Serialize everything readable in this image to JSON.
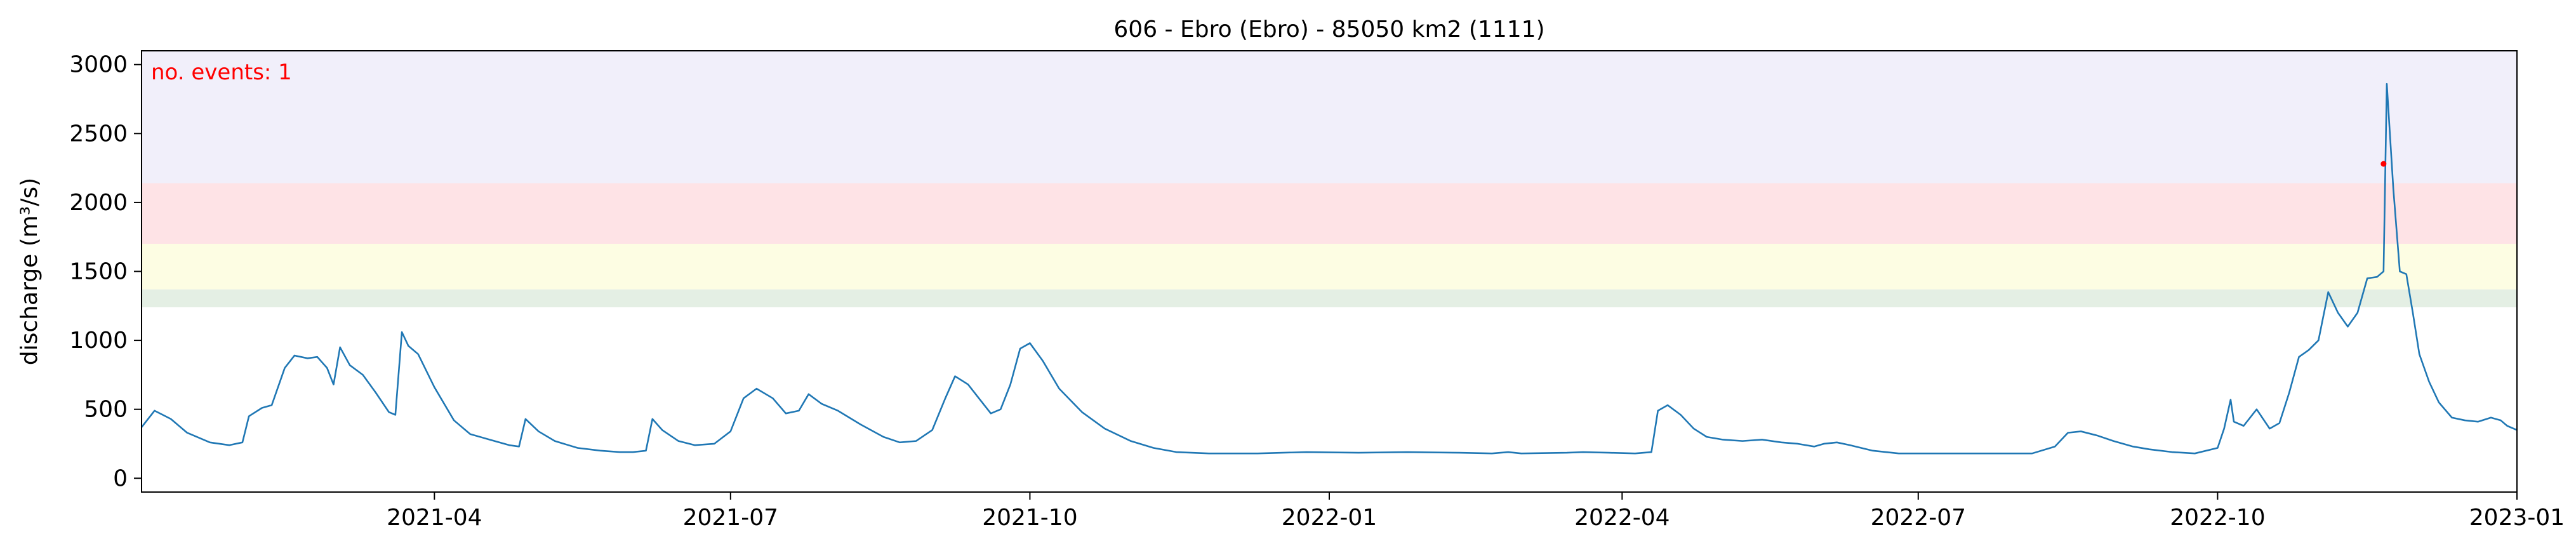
{
  "chart_data": {
    "type": "line",
    "title": "606 - Ebro (Ebro) - 85050 km2 (1111)",
    "xlabel": "",
    "ylabel": "discharge (m³/s)",
    "xlim": [
      "2021-01-01",
      "2023-01-01"
    ],
    "ylim": [
      -100,
      3100
    ],
    "grid": false,
    "x_ticks": [
      "2021-04",
      "2021-07",
      "2021-10",
      "2022-01",
      "2022-04",
      "2022-07",
      "2022-10",
      "2023-01"
    ],
    "y_ticks": [
      "0",
      "500",
      "1000",
      "1500",
      "2000",
      "2500",
      "3000"
    ],
    "y_tick_values": [
      0,
      500,
      1000,
      1500,
      2000,
      2500,
      3000
    ],
    "threshold_bands": [
      {
        "from": 1240,
        "to": 1370,
        "color": "#e4efe4"
      },
      {
        "from": 1370,
        "to": 1700,
        "color": "#fdfde3"
      },
      {
        "from": 1700,
        "to": 2140,
        "color": "#fee3e6"
      },
      {
        "from": 2140,
        "to": 3100,
        "color": "#f1effa"
      }
    ],
    "series": [
      {
        "color": "#1f77b4",
        "points": [
          [
            "2021-01-01",
            370
          ],
          [
            "2021-01-05",
            490
          ],
          [
            "2021-01-10",
            430
          ],
          [
            "2021-01-15",
            330
          ],
          [
            "2021-01-22",
            260
          ],
          [
            "2021-01-28",
            240
          ],
          [
            "2021-02-01",
            260
          ],
          [
            "2021-02-03",
            450
          ],
          [
            "2021-02-07",
            510
          ],
          [
            "2021-02-10",
            530
          ],
          [
            "2021-02-14",
            800
          ],
          [
            "2021-02-17",
            890
          ],
          [
            "2021-02-21",
            870
          ],
          [
            "2021-02-24",
            880
          ],
          [
            "2021-02-27",
            800
          ],
          [
            "2021-03-01",
            680
          ],
          [
            "2021-03-03",
            950
          ],
          [
            "2021-03-06",
            820
          ],
          [
            "2021-03-10",
            750
          ],
          [
            "2021-03-14",
            620
          ],
          [
            "2021-03-18",
            480
          ],
          [
            "2021-03-20",
            460
          ],
          [
            "2021-03-22",
            1060
          ],
          [
            "2021-03-24",
            960
          ],
          [
            "2021-03-27",
            900
          ],
          [
            "2021-04-01",
            660
          ],
          [
            "2021-04-07",
            420
          ],
          [
            "2021-04-12",
            320
          ],
          [
            "2021-04-18",
            280
          ],
          [
            "2021-04-24",
            240
          ],
          [
            "2021-04-27",
            230
          ],
          [
            "2021-04-29",
            430
          ],
          [
            "2021-05-03",
            340
          ],
          [
            "2021-05-08",
            270
          ],
          [
            "2021-05-15",
            220
          ],
          [
            "2021-05-22",
            200
          ],
          [
            "2021-05-28",
            190
          ],
          [
            "2021-06-01",
            190
          ],
          [
            "2021-06-05",
            200
          ],
          [
            "2021-06-07",
            430
          ],
          [
            "2021-06-10",
            350
          ],
          [
            "2021-06-15",
            270
          ],
          [
            "2021-06-20",
            240
          ],
          [
            "2021-06-26",
            250
          ],
          [
            "2021-07-01",
            340
          ],
          [
            "2021-07-05",
            580
          ],
          [
            "2021-07-09",
            650
          ],
          [
            "2021-07-14",
            580
          ],
          [
            "2021-07-18",
            470
          ],
          [
            "2021-07-22",
            490
          ],
          [
            "2021-07-25",
            610
          ],
          [
            "2021-07-29",
            540
          ],
          [
            "2021-08-03",
            490
          ],
          [
            "2021-08-10",
            390
          ],
          [
            "2021-08-17",
            300
          ],
          [
            "2021-08-22",
            260
          ],
          [
            "2021-08-27",
            270
          ],
          [
            "2021-09-01",
            350
          ],
          [
            "2021-09-05",
            580
          ],
          [
            "2021-09-08",
            740
          ],
          [
            "2021-09-12",
            680
          ],
          [
            "2021-09-16",
            560
          ],
          [
            "2021-09-19",
            470
          ],
          [
            "2021-09-22",
            500
          ],
          [
            "2021-09-25",
            680
          ],
          [
            "2021-09-28",
            940
          ],
          [
            "2021-10-01",
            980
          ],
          [
            "2021-10-05",
            850
          ],
          [
            "2021-10-10",
            650
          ],
          [
            "2021-10-17",
            480
          ],
          [
            "2021-10-24",
            360
          ],
          [
            "2021-11-01",
            270
          ],
          [
            "2021-11-08",
            220
          ],
          [
            "2021-11-15",
            190
          ],
          [
            "2021-11-25",
            180
          ],
          [
            "2021-12-10",
            180
          ],
          [
            "2021-12-25",
            190
          ],
          [
            "2022-01-10",
            185
          ],
          [
            "2022-01-25",
            190
          ],
          [
            "2022-02-10",
            185
          ],
          [
            "2022-02-20",
            180
          ],
          [
            "2022-02-25",
            190
          ],
          [
            "2022-03-01",
            180
          ],
          [
            "2022-03-15",
            185
          ],
          [
            "2022-03-20",
            190
          ],
          [
            "2022-03-28",
            185
          ],
          [
            "2022-04-05",
            180
          ],
          [
            "2022-04-10",
            190
          ],
          [
            "2022-04-12",
            490
          ],
          [
            "2022-04-15",
            530
          ],
          [
            "2022-04-19",
            460
          ],
          [
            "2022-04-23",
            360
          ],
          [
            "2022-04-27",
            300
          ],
          [
            "2022-05-02",
            280
          ],
          [
            "2022-05-08",
            270
          ],
          [
            "2022-05-14",
            280
          ],
          [
            "2022-05-20",
            260
          ],
          [
            "2022-05-25",
            250
          ],
          [
            "2022-05-30",
            230
          ],
          [
            "2022-06-02",
            250
          ],
          [
            "2022-06-06",
            260
          ],
          [
            "2022-06-10",
            240
          ],
          [
            "2022-06-17",
            200
          ],
          [
            "2022-06-25",
            180
          ],
          [
            "2022-07-05",
            180
          ],
          [
            "2022-07-15",
            180
          ],
          [
            "2022-07-28",
            180
          ],
          [
            "2022-08-05",
            180
          ],
          [
            "2022-08-12",
            230
          ],
          [
            "2022-08-16",
            330
          ],
          [
            "2022-08-20",
            340
          ],
          [
            "2022-08-25",
            310
          ],
          [
            "2022-08-30",
            270
          ],
          [
            "2022-09-05",
            230
          ],
          [
            "2022-09-10",
            210
          ],
          [
            "2022-09-17",
            190
          ],
          [
            "2022-09-24",
            180
          ],
          [
            "2022-10-01",
            220
          ],
          [
            "2022-10-03",
            360
          ],
          [
            "2022-10-05",
            570
          ],
          [
            "2022-10-06",
            410
          ],
          [
            "2022-10-09",
            380
          ],
          [
            "2022-10-13",
            500
          ],
          [
            "2022-10-17",
            360
          ],
          [
            "2022-10-20",
            400
          ],
          [
            "2022-10-23",
            620
          ],
          [
            "2022-10-26",
            880
          ],
          [
            "2022-10-29",
            930
          ],
          [
            "2022-11-01",
            1000
          ],
          [
            "2022-11-04",
            1350
          ],
          [
            "2022-11-07",
            1200
          ],
          [
            "2022-11-10",
            1100
          ],
          [
            "2022-11-13",
            1200
          ],
          [
            "2022-11-16",
            1450
          ],
          [
            "2022-11-19",
            1460
          ],
          [
            "2022-11-21",
            1500
          ],
          [
            "2022-11-22",
            2860
          ],
          [
            "2022-11-24",
            2100
          ],
          [
            "2022-11-26",
            1500
          ],
          [
            "2022-11-28",
            1480
          ],
          [
            "2022-11-30",
            1200
          ],
          [
            "2022-12-02",
            900
          ],
          [
            "2022-12-05",
            700
          ],
          [
            "2022-12-08",
            550
          ],
          [
            "2022-12-12",
            440
          ],
          [
            "2022-12-16",
            420
          ],
          [
            "2022-12-20",
            410
          ],
          [
            "2022-12-24",
            440
          ],
          [
            "2022-12-27",
            420
          ],
          [
            "2022-12-29",
            380
          ],
          [
            "2023-01-01",
            350
          ]
        ]
      }
    ],
    "event_markers": [
      {
        "x": "2022-11-21",
        "y": 2280,
        "color": "#ff0000"
      }
    ],
    "annotations": [
      {
        "text": "no. events: 1",
        "color": "#ff0000",
        "position": "top-left"
      }
    ]
  }
}
